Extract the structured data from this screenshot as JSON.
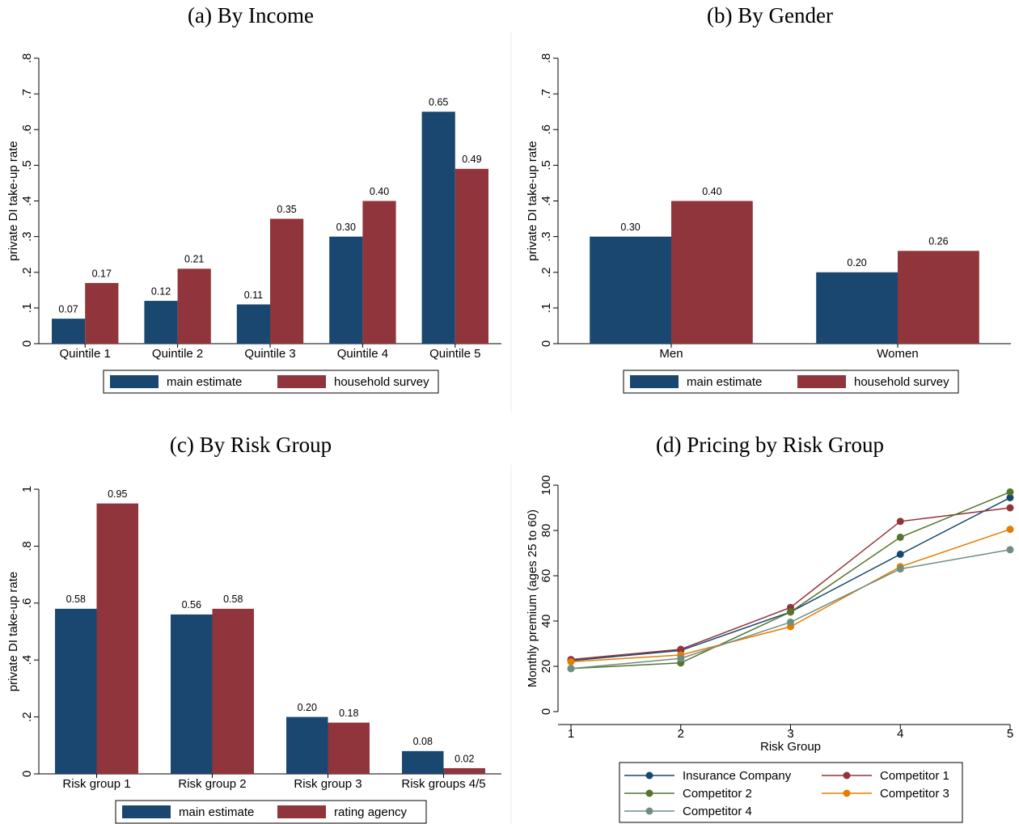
{
  "chart_data": [
    {
      "type": "bar",
      "title": "(a) By Income",
      "y_label": "private DI take-up rate",
      "categories": [
        "Quintile 1",
        "Quintile 2",
        "Quintile 3",
        "Quintile 4",
        "Quintile 5"
      ],
      "series": [
        {
          "name": "main estimate",
          "color": "#1a476f",
          "values": [
            0.07,
            0.12,
            0.11,
            0.3,
            0.65
          ],
          "value_labels": [
            "0.07",
            "0.12",
            "0.11",
            "0.30",
            "0.65"
          ]
        },
        {
          "name": "household survey",
          "color": "#90353b",
          "values": [
            0.17,
            0.21,
            0.35,
            0.4,
            0.49
          ],
          "value_labels": [
            "0.17",
            "0.21",
            "0.35",
            "0.40",
            "0.49"
          ]
        }
      ],
      "ylim": [
        0,
        0.8
      ],
      "yticks": [
        0,
        {
          "value": 0.1,
          "label": ".1"
        },
        {
          "value": 0.2,
          "label": ".2"
        },
        {
          "value": 0.3,
          "label": ".3"
        },
        {
          "value": 0.4,
          "label": ".4"
        },
        {
          "value": 0.5,
          "label": ".5"
        },
        {
          "value": 0.6,
          "label": ".6"
        },
        {
          "value": 0.7,
          "label": ".7"
        },
        {
          "value": 0.8,
          "label": ".8"
        }
      ],
      "grid": false
    },
    {
      "type": "bar",
      "title": "(b) By Gender",
      "y_label": "private DI take-up rate",
      "categories": [
        "Men",
        "Women"
      ],
      "series": [
        {
          "name": "main estimate",
          "color": "#1a476f",
          "values": [
            0.3,
            0.2
          ],
          "value_labels": [
            "0.30",
            "0.20"
          ]
        },
        {
          "name": "household survey",
          "color": "#90353b",
          "values": [
            0.4,
            0.26
          ],
          "value_labels": [
            "0.40",
            "0.26"
          ]
        }
      ],
      "ylim": [
        0,
        0.8
      ],
      "yticks": [
        0,
        {
          "value": 0.1,
          "label": ".1"
        },
        {
          "value": 0.2,
          "label": ".2"
        },
        {
          "value": 0.3,
          "label": ".3"
        },
        {
          "value": 0.4,
          "label": ".4"
        },
        {
          "value": 0.5,
          "label": ".5"
        },
        {
          "value": 0.6,
          "label": ".6"
        },
        {
          "value": 0.7,
          "label": ".7"
        },
        {
          "value": 0.8,
          "label": ".8"
        }
      ],
      "grid": false
    },
    {
      "type": "bar",
      "title": "(c) By Risk Group",
      "y_label": "private DI take-up rate",
      "categories": [
        "Risk group 1",
        "Risk group 2",
        "Risk group 3",
        "Risk groups 4/5"
      ],
      "series": [
        {
          "name": "main estimate",
          "color": "#1a476f",
          "values": [
            0.58,
            0.56,
            0.2,
            0.08
          ],
          "value_labels": [
            "0.58",
            "0.56",
            "0.20",
            "0.08"
          ]
        },
        {
          "name": "rating agency",
          "color": "#90353b",
          "values": [
            0.95,
            0.58,
            0.18,
            0.02
          ],
          "value_labels": [
            "0.95",
            "0.58",
            "0.18",
            "0.02"
          ]
        }
      ],
      "ylim": [
        0,
        1
      ],
      "yticks": [
        0,
        {
          "value": 0.2,
          "label": ".2"
        },
        {
          "value": 0.4,
          "label": ".4"
        },
        {
          "value": 0.6,
          "label": ".6"
        },
        {
          "value": 0.8,
          "label": ".8"
        },
        1
      ],
      "grid": false
    },
    {
      "type": "line",
      "title": "(d) Pricing by Risk Group",
      "y_label": "Monthly premium (ages 25 to 60)",
      "x_label": "Risk Group",
      "x": [
        1,
        2,
        3,
        4,
        5
      ],
      "series": [
        {
          "name": "Insurance Company",
          "color": "#1a476f",
          "values": [
            22.5,
            27,
            44,
            69.5,
            94.5
          ]
        },
        {
          "name": "Competitor 1",
          "color": "#90353b",
          "values": [
            23,
            27.5,
            46,
            84,
            90
          ]
        },
        {
          "name": "Competitor 2",
          "color": "#55752f",
          "values": [
            19,
            21.5,
            44,
            77,
            97
          ]
        },
        {
          "name": "Competitor 3",
          "color": "#e37e00",
          "values": [
            22,
            25,
            37.5,
            64,
            80.5
          ]
        },
        {
          "name": "Competitor 4",
          "color": "#6e8e84",
          "values": [
            19,
            23.5,
            39.5,
            63,
            71.5
          ]
        }
      ],
      "xlim": [
        1,
        5
      ],
      "xticks": [
        1,
        2,
        3,
        4,
        5
      ],
      "ylim": [
        0,
        100
      ],
      "yticks": [
        0,
        20,
        40,
        60,
        80,
        100
      ],
      "grid": false
    }
  ]
}
